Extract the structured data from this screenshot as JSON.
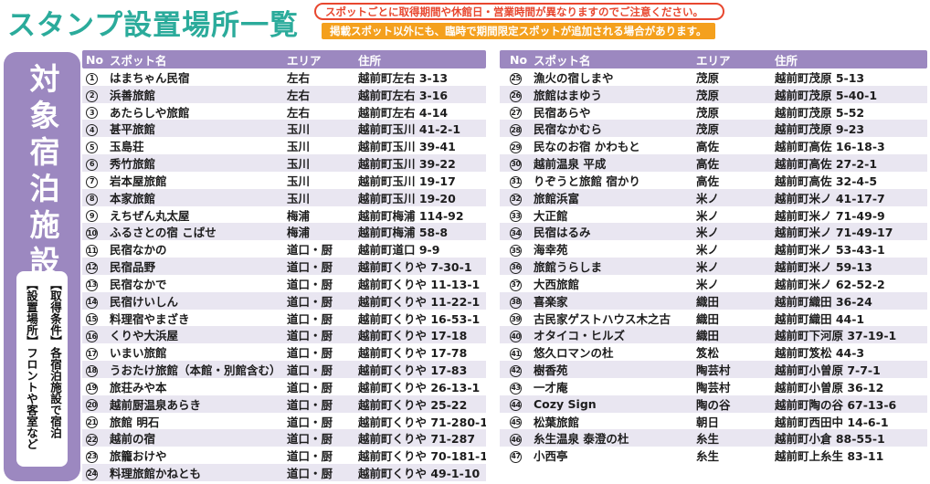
{
  "page": {
    "title": "スタンプ設置場所一覧",
    "notices": [
      {
        "text": "スポットごとに取得期間や休館日・営業時間が異なりますのでご注意ください。",
        "style": "outline-red"
      },
      {
        "text": "掲載スポット以外にも、臨時で期間限定スポットが追加される場合があります。",
        "style": "solid-orange"
      }
    ]
  },
  "sidebar": {
    "vertical_title": "対象宿泊施設",
    "conditions": [
      "【取得条件】各宿泊施設で宿泊",
      "【設置場所】フロントや客室など"
    ]
  },
  "table": {
    "headers": {
      "no": "No",
      "name": "スポット名",
      "area": "エリア",
      "address": "住所"
    },
    "left_rows": [
      {
        "no": "1",
        "name": "はまちゃん民宿",
        "area": "左右",
        "address": "越前町左右 3-13"
      },
      {
        "no": "2",
        "name": "浜善旅館",
        "area": "左右",
        "address": "越前町左右 3-16"
      },
      {
        "no": "3",
        "name": "あたらしや旅館",
        "area": "左右",
        "address": "越前町左右 4-14"
      },
      {
        "no": "4",
        "name": "甚平旅館",
        "area": "玉川",
        "address": "越前町玉川 41-2-1"
      },
      {
        "no": "5",
        "name": "玉島荘",
        "area": "玉川",
        "address": "越前町玉川 39-41"
      },
      {
        "no": "6",
        "name": "秀竹旅館",
        "area": "玉川",
        "address": "越前町玉川 39-22"
      },
      {
        "no": "7",
        "name": "岩本屋旅館",
        "area": "玉川",
        "address": "越前町玉川 19-17"
      },
      {
        "no": "8",
        "name": "本家旅館",
        "area": "玉川",
        "address": "越前町玉川 19-20"
      },
      {
        "no": "9",
        "name": "えちぜん丸太屋",
        "area": "梅浦",
        "address": "越前町梅浦 114-92"
      },
      {
        "no": "10",
        "name": "ふるさとの宿 こばせ",
        "area": "梅浦",
        "address": "越前町梅浦 58-8"
      },
      {
        "no": "11",
        "name": "民宿なかの",
        "area": "道口・厨",
        "address": "越前町道口 9-9"
      },
      {
        "no": "12",
        "name": "民宿品野",
        "area": "道口・厨",
        "address": "越前町くりや 7-30-1"
      },
      {
        "no": "13",
        "name": "民宿なかで",
        "area": "道口・厨",
        "address": "越前町くりや 11-13-1"
      },
      {
        "no": "14",
        "name": "民宿けいしん",
        "area": "道口・厨",
        "address": "越前町くりや 11-22-1"
      },
      {
        "no": "15",
        "name": "料理宿やまざき",
        "area": "道口・厨",
        "address": "越前町くりや 16-53-1"
      },
      {
        "no": "16",
        "name": "くりや大浜屋",
        "area": "道口・厨",
        "address": "越前町くりや 17-18"
      },
      {
        "no": "17",
        "name": "いまい旅館",
        "area": "道口・厨",
        "address": "越前町くりや 17-78"
      },
      {
        "no": "18",
        "name": "うおたけ旅館（本館・別館含む）",
        "area": "道口・厨",
        "address": "越前町くりや 17-83"
      },
      {
        "no": "19",
        "name": "旅荘みや本",
        "area": "道口・厨",
        "address": "越前町くりや 26-13-1"
      },
      {
        "no": "20",
        "name": "越前厨温泉あらき",
        "area": "道口・厨",
        "address": "越前町くりや 25-22"
      },
      {
        "no": "21",
        "name": "旅館 明石",
        "area": "道口・厨",
        "address": "越前町くりや 71-280-1"
      },
      {
        "no": "22",
        "name": "越前の宿",
        "area": "道口・厨",
        "address": "越前町くりや 71-287"
      },
      {
        "no": "23",
        "name": "旅籠おけや",
        "area": "道口・厨",
        "address": "越前町くりや 70-181-1"
      },
      {
        "no": "24",
        "name": "料理旅館かねとも",
        "area": "道口・厨",
        "address": "越前町くりや 49-1-10"
      }
    ],
    "right_rows": [
      {
        "no": "25",
        "name": "漁火の宿しまや",
        "area": "茂原",
        "address": "越前町茂原 5-13"
      },
      {
        "no": "26",
        "name": "旅館はまゆう",
        "area": "茂原",
        "address": "越前町茂原 5-40-1"
      },
      {
        "no": "27",
        "name": "民宿あらや",
        "area": "茂原",
        "address": "越前町茂原 5-52"
      },
      {
        "no": "28",
        "name": "民宿なかむら",
        "area": "茂原",
        "address": "越前町茂原 9-23"
      },
      {
        "no": "29",
        "name": "民なのお宿 かわもと",
        "area": "高佐",
        "address": "越前町高佐 16-18-3"
      },
      {
        "no": "30",
        "name": "越前温泉 平成",
        "area": "高佐",
        "address": "越前町高佐 27-2-1"
      },
      {
        "no": "31",
        "name": "りぞうと旅館 宿かり",
        "area": "高佐",
        "address": "越前町高佐 32-4-5"
      },
      {
        "no": "32",
        "name": "旅館浜富",
        "area": "米ノ",
        "address": "越前町米ノ 41-17-7"
      },
      {
        "no": "33",
        "name": "大正館",
        "area": "米ノ",
        "address": "越前町米ノ 71-49-9"
      },
      {
        "no": "34",
        "name": "民宿はるみ",
        "area": "米ノ",
        "address": "越前町米ノ 71-49-17"
      },
      {
        "no": "35",
        "name": "海幸苑",
        "area": "米ノ",
        "address": "越前町米ノ 53-43-1"
      },
      {
        "no": "36",
        "name": "旅館うらしま",
        "area": "米ノ",
        "address": "越前町米ノ 59-13"
      },
      {
        "no": "37",
        "name": "大西旅館",
        "area": "米ノ",
        "address": "越前町米ノ 62-52-2"
      },
      {
        "no": "38",
        "name": "喜楽家",
        "area": "織田",
        "address": "越前町織田 36-24"
      },
      {
        "no": "39",
        "name": "古民家ゲストハウス木之古",
        "area": "織田",
        "address": "越前町織田 44-1"
      },
      {
        "no": "40",
        "name": "オタイコ・ヒルズ",
        "area": "織田",
        "address": "越前町下河原 37-19-1"
      },
      {
        "no": "41",
        "name": "悠久ロマンの杜",
        "area": "笈松",
        "address": "越前町笈松 44-3"
      },
      {
        "no": "42",
        "name": "樹香苑",
        "area": "陶芸村",
        "address": "越前町小曽原 7-7-1"
      },
      {
        "no": "43",
        "name": "一才庵",
        "area": "陶芸村",
        "address": "越前町小曽原 36-12"
      },
      {
        "no": "44",
        "name": "Cozy Sign",
        "area": "陶の谷",
        "address": "越前町陶の谷 67-13-6"
      },
      {
        "no": "45",
        "name": "松葉旅館",
        "area": "朝日",
        "address": "越前町西田中 14-6-1"
      },
      {
        "no": "46",
        "name": "糸生温泉 泰澄の杜",
        "area": "糸生",
        "address": "越前町小倉 88-55-1"
      },
      {
        "no": "47",
        "name": "小西亭",
        "area": "糸生",
        "address": "越前町上糸生 83-11"
      }
    ]
  },
  "colors": {
    "accent_purple": "#9c88c0",
    "row_alt": "#e9e6f1",
    "title_teal": "#2bab9b",
    "notice_red": "#e8472f",
    "notice_orange": "#f4a01d",
    "text": "#1d1d1d"
  }
}
